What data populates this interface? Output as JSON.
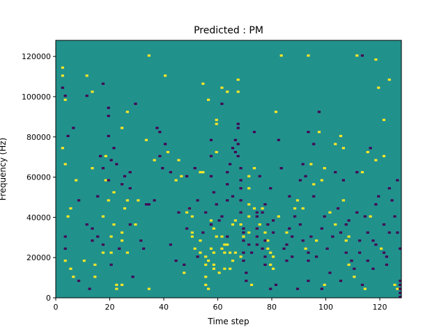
{
  "chart_data": {
    "type": "heatmap",
    "title": "Predicted : PM",
    "xlabel": "Time step",
    "ylabel": "Frequency (Hz)",
    "xlim": [
      0,
      128
    ],
    "ylim": [
      0,
      128000
    ],
    "x_ticks": [
      0,
      20,
      40,
      60,
      80,
      100,
      120
    ],
    "y_ticks": [
      0,
      20000,
      40000,
      60000,
      80000,
      100000,
      120000
    ],
    "colors": {
      "background": "#21918c",
      "high": "#fde725",
      "low": "#440154"
    },
    "grid": false,
    "cells": {
      "high": [
        [
          2,
          74
        ],
        [
          2,
          110
        ],
        [
          2,
          114
        ],
        [
          3,
          98
        ],
        [
          3,
          66
        ],
        [
          4,
          40
        ],
        [
          3,
          18
        ],
        [
          5,
          44
        ],
        [
          5,
          14
        ],
        [
          6,
          10
        ],
        [
          7,
          58
        ],
        [
          10,
          18
        ],
        [
          11,
          110
        ],
        [
          13,
          102
        ],
        [
          13,
          64
        ],
        [
          14,
          16
        ],
        [
          14,
          10
        ],
        [
          17,
          40
        ],
        [
          17,
          22
        ],
        [
          18,
          70
        ],
        [
          18,
          58
        ],
        [
          19,
          48
        ],
        [
          20,
          30
        ],
        [
          20,
          22
        ],
        [
          21,
          52
        ],
        [
          21,
          36
        ],
        [
          22,
          6
        ],
        [
          22,
          4
        ],
        [
          24,
          84
        ],
        [
          24,
          32
        ],
        [
          24,
          28
        ],
        [
          24,
          6
        ],
        [
          25,
          44
        ],
        [
          26,
          92
        ],
        [
          26,
          48
        ],
        [
          26,
          22
        ],
        [
          29,
          36
        ],
        [
          30,
          48
        ],
        [
          33,
          78
        ],
        [
          34,
          120
        ],
        [
          34,
          4
        ],
        [
          36,
          68
        ],
        [
          40,
          110
        ],
        [
          41,
          72
        ],
        [
          44,
          58
        ],
        [
          45,
          68
        ],
        [
          46,
          60
        ],
        [
          47,
          12
        ],
        [
          48,
          42
        ],
        [
          49,
          44
        ],
        [
          50,
          40
        ],
        [
          50,
          32
        ],
        [
          50,
          30
        ],
        [
          51,
          24
        ],
        [
          53,
          62
        ],
        [
          53,
          28
        ],
        [
          53,
          22
        ],
        [
          54,
          106
        ],
        [
          54,
          62
        ],
        [
          56,
          98
        ],
        [
          55,
          20
        ],
        [
          55,
          16
        ],
        [
          55,
          10
        ],
        [
          55,
          6
        ],
        [
          56,
          18
        ],
        [
          56,
          4
        ],
        [
          57,
          38
        ],
        [
          57,
          24
        ],
        [
          58,
          22
        ],
        [
          58,
          16
        ],
        [
          58,
          14
        ],
        [
          59,
          88
        ],
        [
          59,
          86
        ],
        [
          59,
          72
        ],
        [
          58,
          34
        ],
        [
          59,
          30
        ],
        [
          60,
          12
        ],
        [
          61,
          104
        ],
        [
          61,
          30
        ],
        [
          61,
          24
        ],
        [
          62,
          26
        ],
        [
          62,
          22
        ],
        [
          62,
          14
        ],
        [
          63,
          102
        ],
        [
          63,
          26
        ],
        [
          64,
          22
        ],
        [
          64,
          14
        ],
        [
          65,
          36
        ],
        [
          65,
          18
        ],
        [
          66,
          38
        ],
        [
          66,
          22
        ],
        [
          67,
          108
        ],
        [
          67,
          102
        ],
        [
          68,
          36
        ],
        [
          68,
          20
        ],
        [
          69,
          30
        ],
        [
          71,
          60
        ],
        [
          71,
          54
        ],
        [
          71,
          46
        ],
        [
          71,
          40
        ],
        [
          71,
          32
        ],
        [
          72,
          6
        ],
        [
          73,
          64
        ],
        [
          73,
          44
        ],
        [
          75,
          36
        ],
        [
          76,
          44
        ],
        [
          77,
          32
        ],
        [
          78,
          28
        ],
        [
          78,
          24
        ],
        [
          79,
          22
        ],
        [
          79,
          16
        ],
        [
          80,
          20
        ],
        [
          80,
          14
        ],
        [
          81,
          92
        ],
        [
          82,
          40
        ],
        [
          83,
          120
        ],
        [
          85,
          32
        ],
        [
          88,
          44
        ],
        [
          89,
          48
        ],
        [
          91,
          44
        ],
        [
          92,
          24
        ],
        [
          93,
          120
        ],
        [
          94,
          66
        ],
        [
          95,
          56
        ],
        [
          96,
          28
        ],
        [
          97,
          82
        ],
        [
          98,
          58
        ],
        [
          99,
          64
        ],
        [
          99,
          6
        ],
        [
          101,
          42
        ],
        [
          103,
          76
        ],
        [
          103,
          36
        ],
        [
          105,
          80
        ],
        [
          106,
          74
        ],
        [
          106,
          48
        ],
        [
          107,
          28
        ],
        [
          108,
          30
        ],
        [
          108,
          16
        ],
        [
          110,
          10
        ],
        [
          111,
          120
        ],
        [
          113,
          62
        ],
        [
          114,
          4
        ],
        [
          115,
          72
        ],
        [
          116,
          40
        ],
        [
          118,
          118
        ],
        [
          118,
          68
        ],
        [
          119,
          104
        ],
        [
          120,
          24
        ],
        [
          121,
          88
        ],
        [
          121,
          70
        ],
        [
          123,
          108
        ],
        [
          125,
          6
        ],
        [
          126,
          4
        ]
      ],
      "low": [
        [
          2,
          104
        ],
        [
          3,
          100
        ],
        [
          3,
          30
        ],
        [
          3,
          24
        ],
        [
          4,
          80
        ],
        [
          6,
          84
        ],
        [
          8,
          48
        ],
        [
          8,
          8
        ],
        [
          11,
          100
        ],
        [
          11,
          36
        ],
        [
          12,
          4
        ],
        [
          13,
          28
        ],
        [
          13,
          34
        ],
        [
          15,
          50
        ],
        [
          15,
          30
        ],
        [
          16,
          70
        ],
        [
          17,
          64
        ],
        [
          17,
          106
        ],
        [
          17,
          26
        ],
        [
          19,
          58
        ],
        [
          19,
          94
        ],
        [
          19,
          90
        ],
        [
          19,
          80
        ],
        [
          20,
          68
        ],
        [
          20,
          16
        ],
        [
          21,
          74
        ],
        [
          22,
          66
        ],
        [
          23,
          24
        ],
        [
          24,
          56
        ],
        [
          25,
          60
        ],
        [
          27,
          62
        ],
        [
          27,
          54
        ],
        [
          27,
          36
        ],
        [
          28,
          10
        ],
        [
          29,
          96
        ],
        [
          31,
          28
        ],
        [
          32,
          24
        ],
        [
          33,
          46
        ],
        [
          34,
          46
        ],
        [
          36,
          48
        ],
        [
          37,
          84
        ],
        [
          38,
          82
        ],
        [
          38,
          70
        ],
        [
          39,
          64
        ],
        [
          40,
          76
        ],
        [
          42,
          62
        ],
        [
          42,
          26
        ],
        [
          44,
          18
        ],
        [
          45,
          42
        ],
        [
          47,
          16
        ],
        [
          48,
          60
        ],
        [
          48,
          34
        ],
        [
          49,
          44
        ],
        [
          51,
          64
        ],
        [
          52,
          48
        ],
        [
          52,
          20
        ],
        [
          54,
          32
        ],
        [
          55,
          42
        ],
        [
          57,
          78
        ],
        [
          57,
          70
        ],
        [
          57,
          60
        ],
        [
          57,
          36
        ],
        [
          58,
          52
        ],
        [
          59,
          46
        ],
        [
          60,
          38
        ],
        [
          61,
          96
        ],
        [
          61,
          40
        ],
        [
          63,
          62
        ],
        [
          63,
          56
        ],
        [
          63,
          48
        ],
        [
          63,
          30
        ],
        [
          64,
          66
        ],
        [
          65,
          74
        ],
        [
          65,
          50
        ],
        [
          66,
          78
        ],
        [
          66,
          72
        ],
        [
          67,
          86
        ],
        [
          67,
          84
        ],
        [
          67,
          76
        ],
        [
          67,
          70
        ],
        [
          68,
          64
        ],
        [
          68,
          58
        ],
        [
          68,
          54
        ],
        [
          68,
          48
        ],
        [
          68,
          42
        ],
        [
          69,
          34
        ],
        [
          69,
          32
        ],
        [
          69,
          28
        ],
        [
          69,
          22
        ],
        [
          69,
          18
        ],
        [
          70,
          12
        ],
        [
          70,
          8
        ],
        [
          71,
          26
        ],
        [
          72,
          22
        ],
        [
          73,
          82
        ],
        [
          74,
          42
        ],
        [
          74,
          40
        ],
        [
          74,
          34
        ],
        [
          74,
          30
        ],
        [
          74,
          26
        ],
        [
          75,
          60
        ],
        [
          76,
          42
        ],
        [
          76,
          24
        ],
        [
          77,
          46
        ],
        [
          77,
          28
        ],
        [
          77,
          20
        ],
        [
          77,
          16
        ],
        [
          78,
          36
        ],
        [
          79,
          54
        ],
        [
          79,
          4
        ],
        [
          80,
          38
        ],
        [
          80,
          32
        ],
        [
          81,
          6
        ],
        [
          82,
          78
        ],
        [
          83,
          64
        ],
        [
          84,
          24
        ],
        [
          85,
          26
        ],
        [
          85,
          18
        ],
        [
          86,
          50
        ],
        [
          86,
          34
        ],
        [
          87,
          30
        ],
        [
          87,
          20
        ],
        [
          88,
          40
        ],
        [
          89,
          4
        ],
        [
          90,
          58
        ],
        [
          90,
          36
        ],
        [
          91,
          66
        ],
        [
          91,
          28
        ],
        [
          92,
          60
        ],
        [
          93,
          22
        ],
        [
          93,
          18
        ],
        [
          93,
          82
        ],
        [
          93,
          8
        ],
        [
          94,
          30
        ],
        [
          95,
          76
        ],
        [
          95,
          50
        ],
        [
          96,
          20
        ],
        [
          97,
          92
        ],
        [
          98,
          34
        ],
        [
          98,
          4
        ],
        [
          99,
          40
        ],
        [
          100,
          24
        ],
        [
          101,
          12
        ],
        [
          102,
          30
        ],
        [
          103,
          62
        ],
        [
          104,
          44
        ],
        [
          105,
          32
        ],
        [
          105,
          8
        ],
        [
          106,
          58
        ],
        [
          107,
          36
        ],
        [
          107,
          22
        ],
        [
          108,
          38
        ],
        [
          109,
          18
        ],
        [
          110,
          14
        ],
        [
          111,
          62
        ],
        [
          111,
          42
        ],
        [
          112,
          28
        ],
        [
          112,
          22
        ],
        [
          113,
          120
        ],
        [
          113,
          6
        ],
        [
          114,
          40
        ],
        [
          115,
          32
        ],
        [
          115,
          18
        ],
        [
          116,
          74
        ],
        [
          117,
          28
        ],
        [
          117,
          14
        ],
        [
          118,
          46
        ],
        [
          118,
          26
        ],
        [
          119,
          50
        ],
        [
          121,
          36
        ],
        [
          121,
          22
        ],
        [
          122,
          20
        ],
        [
          122,
          16
        ],
        [
          123,
          54
        ],
        [
          123,
          32
        ],
        [
          124,
          48
        ],
        [
          125,
          40
        ],
        [
          126,
          58
        ],
        [
          126,
          32
        ],
        [
          127,
          24
        ],
        [
          127,
          8
        ],
        [
          127,
          6
        ],
        [
          127,
          4
        ],
        [
          127,
          2
        ],
        [
          127,
          0
        ]
      ]
    }
  }
}
